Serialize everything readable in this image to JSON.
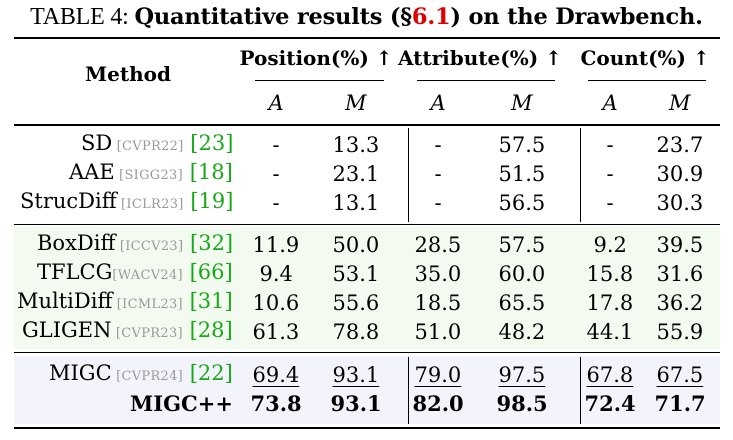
{
  "caption": {
    "prefix": "TABLE 4: ",
    "part1": "Quantitative results (§",
    "ref": "6.1",
    "part2": ") on the Drawbench."
  },
  "header": {
    "method": "Method",
    "position": "Position(%) ↑",
    "attribute": "Attribute(%) ↑",
    "count": "Count(%) ↑",
    "sub_a": "A",
    "sub_m": "M"
  },
  "groups": [
    {
      "band_color": "#ffffff",
      "rows": [
        {
          "name": "SD",
          "venue": "[CVPR22]",
          "cite": "[23]",
          "values": [
            "-",
            "13.3",
            "-",
            "57.5",
            "-",
            "23.7"
          ]
        },
        {
          "name": "AAE",
          "venue": "[SIGG23]",
          "cite": "[18]",
          "values": [
            "-",
            "23.1",
            "-",
            "51.5",
            "-",
            "30.9"
          ]
        },
        {
          "name": "StrucDiff",
          "venue": "[ICLR23]",
          "cite": "[19]",
          "values": [
            "-",
            "13.1",
            "-",
            "56.5",
            "-",
            "30.3"
          ]
        }
      ]
    },
    {
      "band_color": "#f3fbf1",
      "rows": [
        {
          "name": "BoxDiff",
          "venue": "[ICCV23]",
          "cite": "[32]",
          "values": [
            "11.9",
            "50.0",
            "28.5",
            "57.5",
            "9.2",
            "39.5"
          ]
        },
        {
          "name": "TFLCG",
          "venue": "[WACV24]",
          "cite": "[66]",
          "values": [
            "9.4",
            "53.1",
            "35.0",
            "60.0",
            "15.8",
            "31.6"
          ]
        },
        {
          "name": "MultiDiff",
          "venue": "[ICML23]",
          "cite": "[31]",
          "values": [
            "10.6",
            "55.6",
            "18.5",
            "65.5",
            "17.8",
            "36.2"
          ]
        },
        {
          "name": "GLIGEN",
          "venue": "[CVPR23]",
          "cite": "[28]",
          "values": [
            "61.3",
            "78.8",
            "51.0",
            "48.2",
            "44.1",
            "55.9"
          ]
        }
      ]
    },
    {
      "band_color": "#f3f4fb",
      "rows": [
        {
          "name": "MIGC",
          "venue": "[CVPR24]",
          "cite": "[22]",
          "values": [
            "69.4",
            "93.1",
            "79.0",
            "97.5",
            "67.8",
            "67.5"
          ],
          "style": "underline"
        },
        {
          "name": "MIGC++",
          "venue": "",
          "cite": "",
          "values": [
            "73.8",
            "93.1",
            "82.0",
            "98.5",
            "72.4",
            "71.7"
          ],
          "style": "bold"
        }
      ]
    }
  ],
  "colors": {
    "citation": "#1aa81a",
    "reference": "#e00000",
    "venue": "#9a9a9a"
  }
}
